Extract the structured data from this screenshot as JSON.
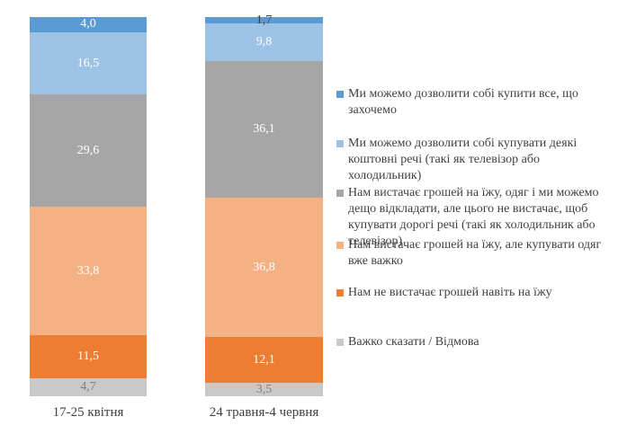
{
  "chart_data": {
    "type": "bar",
    "stacked": true,
    "percent_total": 100,
    "legend_position": "right",
    "grid": false,
    "ylim": [
      0,
      100
    ],
    "categories": [
      "17-25 квітня",
      "24 травня-4 червня"
    ],
    "series": [
      {
        "name": "Ми можемо дозволити собі купити все, що\nзахочемо",
        "color": "#5B9BD5",
        "values": [
          4.0,
          1.7
        ],
        "label_colors": [
          "#FFFFFF",
          "#404040"
        ]
      },
      {
        "name": "Ми можемо дозволити собі купувати деякі\nкоштовні речі (такі як телевізор або холодильник)",
        "color": "#9CC2E5",
        "values": [
          16.5,
          9.8
        ],
        "label_colors": [
          "#FFFFFF",
          "#FFFFFF"
        ]
      },
      {
        "name": "Нам вистачає грошей на їжу, одяг і ми можемо\nдещо відкладати, але цього не вистачає, щоб\nкупувати дорогі речі (такі як холодильник або\nтелевізор)",
        "color": "#A6A6A6",
        "values": [
          29.6,
          36.1
        ],
        "label_colors": [
          "#FFFFFF",
          "#FFFFFF"
        ]
      },
      {
        "name": "Нам вистачає грошей на їжу, але купувати одяг\nвже важко",
        "color": "#F4B183",
        "values": [
          33.8,
          36.8
        ],
        "label_colors": [
          "#FFFFFF",
          "#FFFFFF"
        ]
      },
      {
        "name": "Нам не вистачає грошей навіть на їжу",
        "color": "#ED7D31",
        "values": [
          11.5,
          12.1
        ],
        "label_colors": [
          "#FFFFFF",
          "#FFFFFF"
        ]
      },
      {
        "name": "Важко сказати / Відмова",
        "color": "#C9C9C9",
        "values": [
          4.7,
          3.5
        ],
        "label_colors": [
          "#808080",
          "#808080"
        ]
      }
    ],
    "value_label_decimal_separator": ","
  },
  "colors": {
    "background": "#FFFFFF",
    "text": "#404040"
  }
}
